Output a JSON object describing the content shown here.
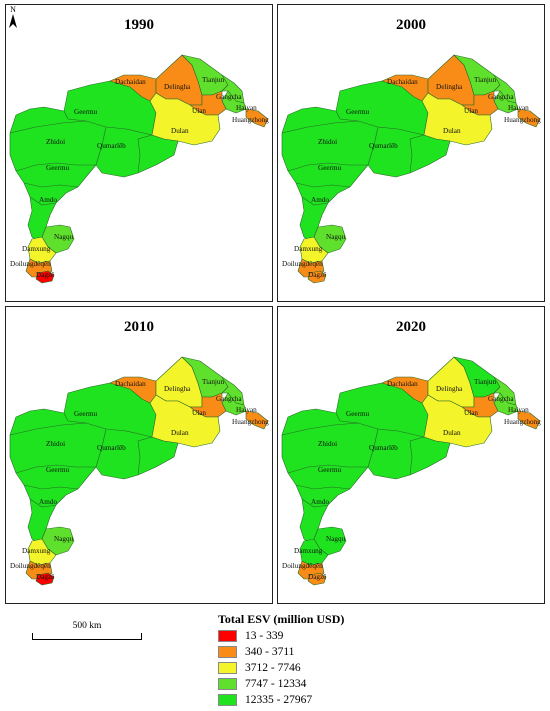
{
  "colors": {
    "c1": "#ff0000",
    "c2": "#f98c17",
    "c3": "#f4f42a",
    "c4": "#5fe02d",
    "c5": "#1ee31e",
    "border": "#2a6b2a"
  },
  "north_label": "N",
  "scale_label": "500 km",
  "legend": {
    "title": "Total ESV (million USD)",
    "items": [
      {
        "label": "13 - 339",
        "color": "#ff0000"
      },
      {
        "label": "340 - 3711",
        "color": "#f98c17"
      },
      {
        "label": "3712 - 7746",
        "color": "#f4f42a"
      },
      {
        "label": "7747 - 12334",
        "color": "#5fe02d"
      },
      {
        "label": "12335 - 27967",
        "color": "#1ee31e"
      }
    ]
  },
  "region_names": {
    "geermu_n": "Geermu",
    "zhidoi": "Zhidoi",
    "qumarleb": "Qumarlêb",
    "geermu_s": "Geermu",
    "amdo": "Amdo",
    "nagqu": "Nagqu",
    "damxung": "Damxung",
    "doilungdeqen": "Doilungdêqên",
    "dagze": "Dagzê",
    "dachaidan": "Dachaidan",
    "delingha": "Delingha",
    "tianjun": "Tianjun",
    "gangcha": "Gangcha",
    "haiyan": "Haiyan",
    "huangzhong": "Huangzhong",
    "ulan": "Ulan",
    "dulan": "Dulan"
  },
  "panels": [
    {
      "year": "1990",
      "classes": {
        "main": "c5",
        "dachaidan": "c2",
        "delingha": "c2",
        "tianjun": "c4",
        "gangcha": "c4",
        "haiyan": "c4",
        "huangzhong": "c2",
        "ulan": "c2",
        "dulan": "c3",
        "nagqu": "c4",
        "damxung": "c3",
        "doilungdeqen": "c2",
        "dagze": "c1"
      }
    },
    {
      "year": "2000",
      "classes": {
        "main": "c5",
        "dachaidan": "c2",
        "delingha": "c2",
        "tianjun": "c4",
        "gangcha": "c4",
        "haiyan": "c4",
        "huangzhong": "c2",
        "ulan": "c2",
        "dulan": "c3",
        "nagqu": "c4",
        "damxung": "c3",
        "doilungdeqen": "c2",
        "dagze": "c2"
      }
    },
    {
      "year": "2010",
      "classes": {
        "main": "c5",
        "dachaidan": "c2",
        "delingha": "c3",
        "tianjun": "c4",
        "gangcha": "c4",
        "haiyan": "c4",
        "huangzhong": "c2",
        "ulan": "c2",
        "dulan": "c3",
        "nagqu": "c4",
        "damxung": "c3",
        "doilungdeqen": "c2",
        "dagze": "c1"
      }
    },
    {
      "year": "2020",
      "classes": {
        "main": "c5",
        "dachaidan": "c2",
        "delingha": "c3",
        "tianjun": "c5",
        "gangcha": "c4",
        "haiyan": "c4",
        "huangzhong": "c2",
        "ulan": "c2",
        "dulan": "c3",
        "nagqu": "c5",
        "damxung": "c5",
        "doilungdeqen": "c2",
        "dagze": "c2"
      }
    }
  ]
}
